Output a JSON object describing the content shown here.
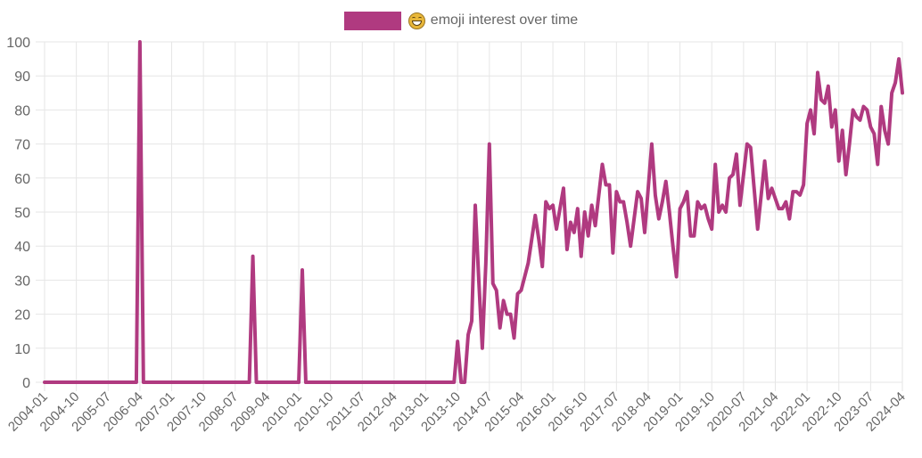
{
  "legend": {
    "label": "emoji interest over time",
    "emoji_icon": "grinning-squinting-face-emoji",
    "color": "#b03a80"
  },
  "style": {
    "line_color": "#b03a80",
    "grid_color": "#e6e6e6",
    "tick_label_color": "#666666"
  },
  "chart_data": {
    "type": "line",
    "title": "",
    "legend": [
      "emoji interest over time"
    ],
    "legend_position": "top",
    "xlabel": "",
    "ylabel": "",
    "ylim": [
      0,
      100
    ],
    "grid": true,
    "x_start": "2004-01",
    "x_end": "2024-04",
    "x_step": "monthly",
    "x_tick_labels": [
      "2004-01",
      "2004-10",
      "2005-07",
      "2006-04",
      "2007-01",
      "2007-10",
      "2008-07",
      "2009-04",
      "2010-01",
      "2010-10",
      "2011-07",
      "2012-04",
      "2013-01",
      "2013-10",
      "2014-07",
      "2015-04",
      "2016-01",
      "2016-10",
      "2017-07",
      "2018-04",
      "2019-01",
      "2019-10",
      "2020-07",
      "2021-04",
      "2022-01",
      "2022-10",
      "2023-07",
      "2024-04"
    ],
    "y_tick_labels": [
      "0",
      "10",
      "20",
      "30",
      "40",
      "50",
      "60",
      "70",
      "80",
      "90",
      "100"
    ],
    "series": [
      {
        "name": "emoji interest over time",
        "color": "#b03a80",
        "values": [
          0,
          0,
          0,
          0,
          0,
          0,
          0,
          0,
          0,
          0,
          0,
          0,
          0,
          0,
          0,
          0,
          0,
          0,
          0,
          0,
          0,
          0,
          0,
          0,
          0,
          0,
          0,
          100,
          0,
          0,
          0,
          0,
          0,
          0,
          0,
          0,
          0,
          0,
          0,
          0,
          0,
          0,
          0,
          0,
          0,
          0,
          0,
          0,
          0,
          0,
          0,
          0,
          0,
          0,
          0,
          0,
          0,
          0,
          0,
          37,
          0,
          0,
          0,
          0,
          0,
          0,
          0,
          0,
          0,
          0,
          0,
          0,
          0,
          33,
          0,
          0,
          0,
          0,
          0,
          0,
          0,
          0,
          0,
          0,
          0,
          0,
          0,
          0,
          0,
          0,
          0,
          0,
          0,
          0,
          0,
          0,
          0,
          0,
          0,
          0,
          0,
          0,
          0,
          0,
          0,
          0,
          0,
          0,
          0,
          0,
          0,
          0,
          0,
          0,
          0,
          0,
          0,
          12,
          0,
          0,
          14,
          18,
          52,
          30,
          10,
          35,
          70,
          29,
          27,
          16,
          24,
          20,
          20,
          13,
          26,
          27,
          31,
          35,
          42,
          49,
          42,
          34,
          53,
          51,
          52,
          45,
          51,
          57,
          39,
          47,
          44,
          51,
          37,
          50,
          43,
          52,
          46,
          55,
          64,
          58,
          58,
          38,
          56,
          53,
          53,
          47,
          40,
          48,
          56,
          54,
          44,
          57,
          70,
          55,
          48,
          53,
          59,
          50,
          40,
          31,
          51,
          53,
          56,
          43,
          43,
          53,
          51,
          52,
          48,
          45,
          64,
          50,
          52,
          50,
          60,
          61,
          67,
          52,
          61,
          70,
          69,
          57,
          45,
          55,
          65,
          54,
          57,
          54,
          51,
          51,
          53,
          48,
          56,
          56,
          55,
          58,
          76,
          80,
          73,
          91,
          83,
          82,
          87,
          75,
          80,
          65,
          74,
          61,
          70,
          80,
          78,
          77,
          81,
          80,
          75,
          73,
          64,
          81,
          74,
          70,
          85,
          88,
          95,
          85
        ]
      }
    ]
  }
}
